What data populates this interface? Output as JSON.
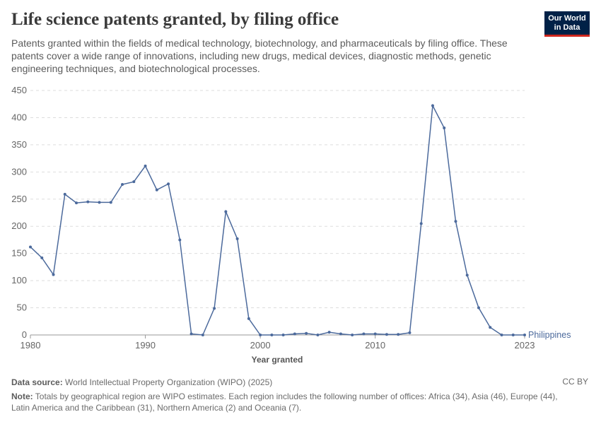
{
  "header": {
    "title": "Life science patents granted, by filing office",
    "subtitle": "Patents granted within the fields of medical technology, biotechnology, and pharmaceuticals by filing office. These patents cover a wide range of innovations, including new drugs, medical devices, diagnostic methods, genetic engineering techniques, and biotechnological processes.",
    "logo_line1": "Our World",
    "logo_line2": "in Data"
  },
  "footer": {
    "source_label": "Data source:",
    "source_text": "World Intellectual Property Organization (WIPO) (2025)",
    "license": "CC BY",
    "note_label": "Note:",
    "note_text": "Totals by geographical region are WIPO estimates. Each region includes the following number of offices: Africa (34), Asia (46), Europe (44), Latin America and the Caribbean (31), Northern America (2) and Oceania (7)."
  },
  "colors": {
    "line": "#4c6a9c",
    "grid": "#dddddd",
    "axis": "#999999"
  },
  "chart_data": {
    "type": "line",
    "title": "Life science patents granted, by filing office",
    "xlabel": "Year granted",
    "ylabel": "",
    "xlim": [
      1980,
      2023
    ],
    "ylim": [
      0,
      450
    ],
    "y_ticks": [
      0,
      50,
      100,
      150,
      200,
      250,
      300,
      350,
      400,
      450
    ],
    "x_ticks": [
      1980,
      1990,
      2000,
      2010,
      2023
    ],
    "x_tick_labels": [
      "1980",
      "1990",
      "2000",
      "2010",
      "2023"
    ],
    "grid": true,
    "series": [
      {
        "name": "Philippines",
        "x": [
          1980,
          1981,
          1982,
          1983,
          1984,
          1985,
          1986,
          1987,
          1988,
          1989,
          1990,
          1991,
          1992,
          1993,
          1994,
          1995,
          1996,
          1997,
          1998,
          1999,
          2000,
          2001,
          2002,
          2003,
          2004,
          2005,
          2006,
          2007,
          2008,
          2009,
          2010,
          2011,
          2012,
          2013,
          2014,
          2015,
          2016,
          2017,
          2018,
          2019,
          2020,
          2021,
          2022,
          2023
        ],
        "values": [
          162,
          142,
          111,
          259,
          243,
          245,
          244,
          244,
          277,
          282,
          311,
          267,
          278,
          175,
          2,
          0,
          49,
          227,
          177,
          30,
          0,
          0,
          0,
          2,
          3,
          0,
          5,
          2,
          0,
          2,
          2,
          1,
          1,
          4,
          205,
          422,
          381,
          209,
          110,
          50,
          14,
          0,
          0,
          0
        ]
      }
    ]
  }
}
